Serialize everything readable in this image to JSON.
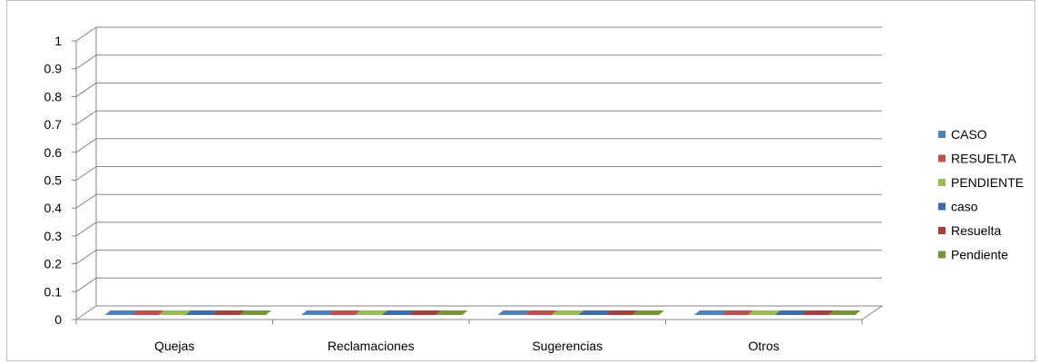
{
  "chart_data": {
    "type": "bar",
    "categories": [
      "Quejas",
      "Reclamaciones",
      "Sugerencias",
      "Otros"
    ],
    "series": [
      {
        "name": "CASO",
        "values": [
          0,
          0,
          0,
          0
        ],
        "color": "#4F81BD"
      },
      {
        "name": "RESUELTA",
        "values": [
          0,
          0,
          0,
          0
        ],
        "color": "#C0504D"
      },
      {
        "name": "PENDIENTE",
        "values": [
          0,
          0,
          0,
          0
        ],
        "color": "#9BBB59"
      },
      {
        "name": "caso",
        "values": [
          0,
          0,
          0,
          0
        ],
        "color": "#3E6CA6"
      },
      {
        "name": "Resuelta",
        "values": [
          0,
          0,
          0,
          0
        ],
        "color": "#A5403D"
      },
      {
        "name": "Pendiente",
        "values": [
          0,
          0,
          0,
          0
        ],
        "color": "#77933C"
      }
    ],
    "yticks": [
      "0",
      "0.1",
      "0.2",
      "0.3",
      "0.4",
      "0.5",
      "0.6",
      "0.7",
      "0.8",
      "0.9",
      "1"
    ],
    "ylim": [
      0,
      1
    ],
    "grid": true,
    "legend_position": "right",
    "title": "",
    "xlabel": "",
    "ylabel": ""
  }
}
